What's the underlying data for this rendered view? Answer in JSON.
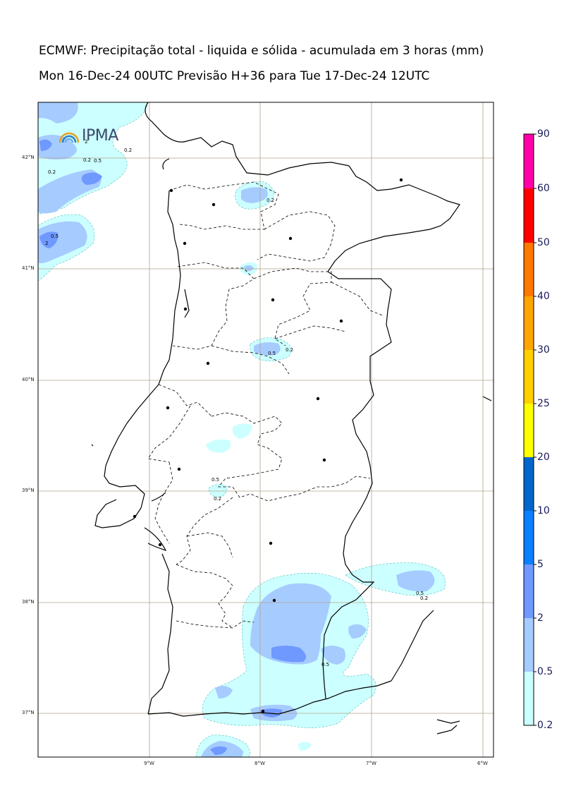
{
  "header": {
    "title": "ECMWF: Precipitação total - liquida e sólida - acumulada em 3 horas (mm)",
    "subtitle": "Mon 16-Dec-24 00UTC Previsão H+36 para Tue 17-Dec-24 12UTC"
  },
  "logo": {
    "text": "IPMA"
  },
  "axes": {
    "lat_labels": [
      "42°N",
      "41°N",
      "40°N",
      "39°N",
      "38°N",
      "37°N"
    ],
    "lon_labels": [
      "9°W",
      "8°W",
      "7°W",
      "6°W"
    ]
  },
  "colorbar": {
    "labels": [
      "90",
      "60",
      "50",
      "40",
      "30",
      "25",
      "20",
      "10",
      "5",
      "2",
      "0.5",
      "0.2"
    ],
    "colors": [
      "#ff00aa",
      "#ff0000",
      "#ff7800",
      "#ffa500",
      "#ffd000",
      "#ffff00",
      "#0066cc",
      "#0a7fff",
      "#6f99ff",
      "#a6cbff",
      "#ccffff"
    ]
  },
  "contour_labels": [
    "0.2",
    "0.5",
    "2",
    "0.2",
    "0.5",
    "0.2",
    "0.5",
    "2",
    "0.2",
    "0.5",
    "0.2",
    "0.5",
    "0.2",
    "0.5",
    "0.2"
  ],
  "colors": {
    "light_cyan": "#ccffff",
    "light_blue": "#a6cbff",
    "medium_blue": "#6f99ff",
    "grid": "#b2a48a"
  }
}
